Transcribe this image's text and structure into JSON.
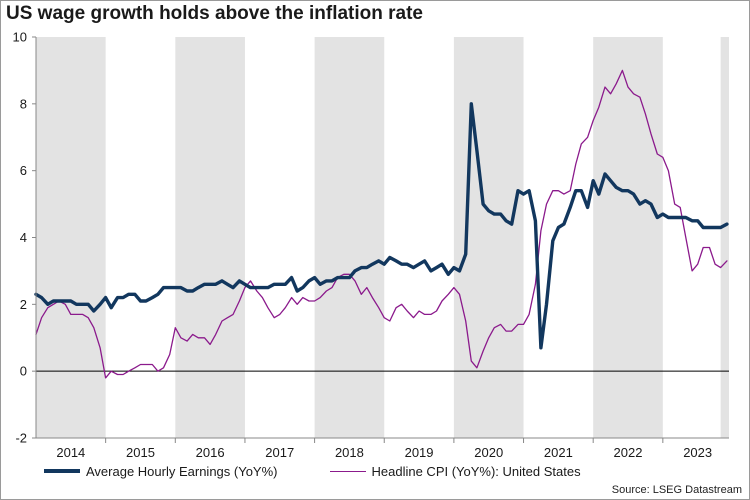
{
  "title": "US wage growth holds above the inflation rate",
  "source": "Source: LSEG Datastream",
  "colors": {
    "earnings": "#12375e",
    "cpi": "#8b1a8c",
    "band": "#e3e3e3",
    "zero_line": "#000000",
    "axis": "#888888"
  },
  "legend": [
    {
      "label": "Average Hourly Earnings  (YoY%)",
      "key": "earnings"
    },
    {
      "label": "Headline CPI (YoY%): United States",
      "key": "cpi"
    }
  ],
  "chart_data": {
    "type": "line",
    "title": "US wage growth holds above the inflation rate",
    "xlabel": "",
    "ylabel": "",
    "xlim": [
      2014.0,
      2023.95
    ],
    "ylim": [
      -2,
      10
    ],
    "y_ticks": [
      -2,
      0,
      2,
      4,
      6,
      8,
      10
    ],
    "x_tick_labels": [
      "2014",
      "2015",
      "2016",
      "2017",
      "2018",
      "2019",
      "2020",
      "2021",
      "2022",
      "2023"
    ],
    "x_tick_positions": [
      2014.5,
      2015.5,
      2016.5,
      2017.5,
      2018.5,
      2019.5,
      2020.5,
      2021.5,
      2022.5,
      2023.5
    ],
    "shaded_years": [
      2014,
      2016,
      2018,
      2020,
      2022
    ],
    "grid": false,
    "legend_position": "bottom",
    "series": [
      {
        "name": "Average Hourly Earnings  (YoY%)",
        "key": "earnings",
        "points": [
          [
            2014.0,
            2.3
          ],
          [
            2014.08,
            2.2
          ],
          [
            2014.17,
            2.0
          ],
          [
            2014.25,
            2.1
          ],
          [
            2014.33,
            2.1
          ],
          [
            2014.42,
            2.1
          ],
          [
            2014.5,
            2.1
          ],
          [
            2014.58,
            2.0
          ],
          [
            2014.67,
            2.0
          ],
          [
            2014.75,
            2.0
          ],
          [
            2014.83,
            1.8
          ],
          [
            2014.92,
            2.0
          ],
          [
            2015.0,
            2.2
          ],
          [
            2015.08,
            1.9
          ],
          [
            2015.17,
            2.2
          ],
          [
            2015.25,
            2.2
          ],
          [
            2015.33,
            2.3
          ],
          [
            2015.42,
            2.3
          ],
          [
            2015.5,
            2.1
          ],
          [
            2015.58,
            2.1
          ],
          [
            2015.67,
            2.2
          ],
          [
            2015.75,
            2.3
          ],
          [
            2015.83,
            2.5
          ],
          [
            2015.92,
            2.5
          ],
          [
            2016.0,
            2.5
          ],
          [
            2016.08,
            2.5
          ],
          [
            2016.17,
            2.4
          ],
          [
            2016.25,
            2.4
          ],
          [
            2016.33,
            2.5
          ],
          [
            2016.42,
            2.6
          ],
          [
            2016.5,
            2.6
          ],
          [
            2016.58,
            2.6
          ],
          [
            2016.67,
            2.7
          ],
          [
            2016.75,
            2.6
          ],
          [
            2016.83,
            2.5
          ],
          [
            2016.92,
            2.7
          ],
          [
            2017.0,
            2.6
          ],
          [
            2017.08,
            2.5
          ],
          [
            2017.17,
            2.5
          ],
          [
            2017.25,
            2.5
          ],
          [
            2017.33,
            2.5
          ],
          [
            2017.42,
            2.6
          ],
          [
            2017.5,
            2.6
          ],
          [
            2017.58,
            2.6
          ],
          [
            2017.67,
            2.8
          ],
          [
            2017.75,
            2.4
          ],
          [
            2017.83,
            2.5
          ],
          [
            2017.92,
            2.7
          ],
          [
            2018.0,
            2.8
          ],
          [
            2018.08,
            2.6
          ],
          [
            2018.17,
            2.7
          ],
          [
            2018.25,
            2.7
          ],
          [
            2018.33,
            2.8
          ],
          [
            2018.42,
            2.8
          ],
          [
            2018.5,
            2.8
          ],
          [
            2018.58,
            3.0
          ],
          [
            2018.67,
            3.1
          ],
          [
            2018.75,
            3.1
          ],
          [
            2018.83,
            3.2
          ],
          [
            2018.92,
            3.3
          ],
          [
            2019.0,
            3.2
          ],
          [
            2019.08,
            3.4
          ],
          [
            2019.17,
            3.3
          ],
          [
            2019.25,
            3.2
          ],
          [
            2019.33,
            3.2
          ],
          [
            2019.42,
            3.1
          ],
          [
            2019.5,
            3.2
          ],
          [
            2019.58,
            3.3
          ],
          [
            2019.67,
            3.0
          ],
          [
            2019.75,
            3.1
          ],
          [
            2019.83,
            3.2
          ],
          [
            2019.92,
            2.9
          ],
          [
            2020.0,
            3.1
          ],
          [
            2020.08,
            3.0
          ],
          [
            2020.17,
            3.5
          ],
          [
            2020.25,
            8.0
          ],
          [
            2020.33,
            6.6
          ],
          [
            2020.42,
            5.0
          ],
          [
            2020.5,
            4.8
          ],
          [
            2020.58,
            4.7
          ],
          [
            2020.67,
            4.7
          ],
          [
            2020.75,
            4.5
          ],
          [
            2020.83,
            4.4
          ],
          [
            2020.92,
            5.4
          ],
          [
            2021.0,
            5.3
          ],
          [
            2021.08,
            5.4
          ],
          [
            2021.17,
            4.5
          ],
          [
            2021.25,
            0.7
          ],
          [
            2021.33,
            2.0
          ],
          [
            2021.42,
            3.9
          ],
          [
            2021.5,
            4.3
          ],
          [
            2021.58,
            4.4
          ],
          [
            2021.67,
            4.9
          ],
          [
            2021.75,
            5.4
          ],
          [
            2021.83,
            5.4
          ],
          [
            2021.92,
            4.9
          ],
          [
            2022.0,
            5.7
          ],
          [
            2022.08,
            5.3
          ],
          [
            2022.17,
            5.9
          ],
          [
            2022.25,
            5.7
          ],
          [
            2022.33,
            5.5
          ],
          [
            2022.42,
            5.4
          ],
          [
            2022.5,
            5.4
          ],
          [
            2022.58,
            5.3
          ],
          [
            2022.67,
            5.0
          ],
          [
            2022.75,
            5.1
          ],
          [
            2022.83,
            5.0
          ],
          [
            2022.92,
            4.6
          ],
          [
            2023.0,
            4.7
          ],
          [
            2023.08,
            4.6
          ],
          [
            2023.17,
            4.6
          ],
          [
            2023.25,
            4.6
          ],
          [
            2023.33,
            4.6
          ],
          [
            2023.42,
            4.5
          ],
          [
            2023.5,
            4.5
          ],
          [
            2023.58,
            4.3
          ],
          [
            2023.67,
            4.3
          ],
          [
            2023.75,
            4.3
          ],
          [
            2023.83,
            4.3
          ],
          [
            2023.92,
            4.4
          ]
        ]
      },
      {
        "name": "Headline CPI (YoY%): United States",
        "key": "cpi",
        "points": [
          [
            2014.0,
            1.1
          ],
          [
            2014.08,
            1.6
          ],
          [
            2014.17,
            1.9
          ],
          [
            2014.25,
            2.0
          ],
          [
            2014.33,
            2.1
          ],
          [
            2014.42,
            2.0
          ],
          [
            2014.5,
            1.7
          ],
          [
            2014.58,
            1.7
          ],
          [
            2014.67,
            1.7
          ],
          [
            2014.75,
            1.6
          ],
          [
            2014.83,
            1.3
          ],
          [
            2014.92,
            0.7
          ],
          [
            2015.0,
            -0.2
          ],
          [
            2015.08,
            0.0
          ],
          [
            2015.17,
            -0.1
          ],
          [
            2015.25,
            -0.1
          ],
          [
            2015.33,
            0.0
          ],
          [
            2015.42,
            0.1
          ],
          [
            2015.5,
            0.2
          ],
          [
            2015.58,
            0.2
          ],
          [
            2015.67,
            0.2
          ],
          [
            2015.75,
            0.0
          ],
          [
            2015.83,
            0.1
          ],
          [
            2015.92,
            0.5
          ],
          [
            2016.0,
            1.3
          ],
          [
            2016.08,
            1.0
          ],
          [
            2016.17,
            0.9
          ],
          [
            2016.25,
            1.1
          ],
          [
            2016.33,
            1.0
          ],
          [
            2016.42,
            1.0
          ],
          [
            2016.5,
            0.8
          ],
          [
            2016.58,
            1.1
          ],
          [
            2016.67,
            1.5
          ],
          [
            2016.75,
            1.6
          ],
          [
            2016.83,
            1.7
          ],
          [
            2016.92,
            2.1
          ],
          [
            2017.0,
            2.5
          ],
          [
            2017.08,
            2.7
          ],
          [
            2017.17,
            2.4
          ],
          [
            2017.25,
            2.2
          ],
          [
            2017.33,
            1.9
          ],
          [
            2017.42,
            1.6
          ],
          [
            2017.5,
            1.7
          ],
          [
            2017.58,
            1.9
          ],
          [
            2017.67,
            2.2
          ],
          [
            2017.75,
            2.0
          ],
          [
            2017.83,
            2.2
          ],
          [
            2017.92,
            2.1
          ],
          [
            2018.0,
            2.1
          ],
          [
            2018.08,
            2.2
          ],
          [
            2018.17,
            2.4
          ],
          [
            2018.25,
            2.5
          ],
          [
            2018.33,
            2.8
          ],
          [
            2018.42,
            2.9
          ],
          [
            2018.5,
            2.9
          ],
          [
            2018.58,
            2.7
          ],
          [
            2018.67,
            2.3
          ],
          [
            2018.75,
            2.5
          ],
          [
            2018.83,
            2.2
          ],
          [
            2018.92,
            1.9
          ],
          [
            2019.0,
            1.6
          ],
          [
            2019.08,
            1.5
          ],
          [
            2019.17,
            1.9
          ],
          [
            2019.25,
            2.0
          ],
          [
            2019.33,
            1.8
          ],
          [
            2019.42,
            1.6
          ],
          [
            2019.5,
            1.8
          ],
          [
            2019.58,
            1.7
          ],
          [
            2019.67,
            1.7
          ],
          [
            2019.75,
            1.8
          ],
          [
            2019.83,
            2.1
          ],
          [
            2019.92,
            2.3
          ],
          [
            2020.0,
            2.5
          ],
          [
            2020.08,
            2.3
          ],
          [
            2020.17,
            1.5
          ],
          [
            2020.25,
            0.3
          ],
          [
            2020.33,
            0.1
          ],
          [
            2020.42,
            0.6
          ],
          [
            2020.5,
            1.0
          ],
          [
            2020.58,
            1.3
          ],
          [
            2020.67,
            1.4
          ],
          [
            2020.75,
            1.2
          ],
          [
            2020.83,
            1.2
          ],
          [
            2020.92,
            1.4
          ],
          [
            2021.0,
            1.4
          ],
          [
            2021.08,
            1.7
          ],
          [
            2021.17,
            2.6
          ],
          [
            2021.25,
            4.2
          ],
          [
            2021.33,
            5.0
          ],
          [
            2021.42,
            5.4
          ],
          [
            2021.5,
            5.4
          ],
          [
            2021.58,
            5.3
          ],
          [
            2021.67,
            5.4
          ],
          [
            2021.75,
            6.2
          ],
          [
            2021.83,
            6.8
          ],
          [
            2021.92,
            7.0
          ],
          [
            2022.0,
            7.5
          ],
          [
            2022.08,
            7.9
          ],
          [
            2022.17,
            8.5
          ],
          [
            2022.25,
            8.3
          ],
          [
            2022.33,
            8.6
          ],
          [
            2022.42,
            9.0
          ],
          [
            2022.5,
            8.5
          ],
          [
            2022.58,
            8.3
          ],
          [
            2022.67,
            8.2
          ],
          [
            2022.75,
            7.7
          ],
          [
            2022.83,
            7.1
          ],
          [
            2022.92,
            6.5
          ],
          [
            2023.0,
            6.4
          ],
          [
            2023.08,
            6.0
          ],
          [
            2023.17,
            5.0
          ],
          [
            2023.25,
            4.9
          ],
          [
            2023.33,
            4.0
          ],
          [
            2023.42,
            3.0
          ],
          [
            2023.5,
            3.2
          ],
          [
            2023.58,
            3.7
          ],
          [
            2023.67,
            3.7
          ],
          [
            2023.75,
            3.2
          ],
          [
            2023.83,
            3.1
          ],
          [
            2023.92,
            3.3
          ]
        ]
      }
    ]
  }
}
